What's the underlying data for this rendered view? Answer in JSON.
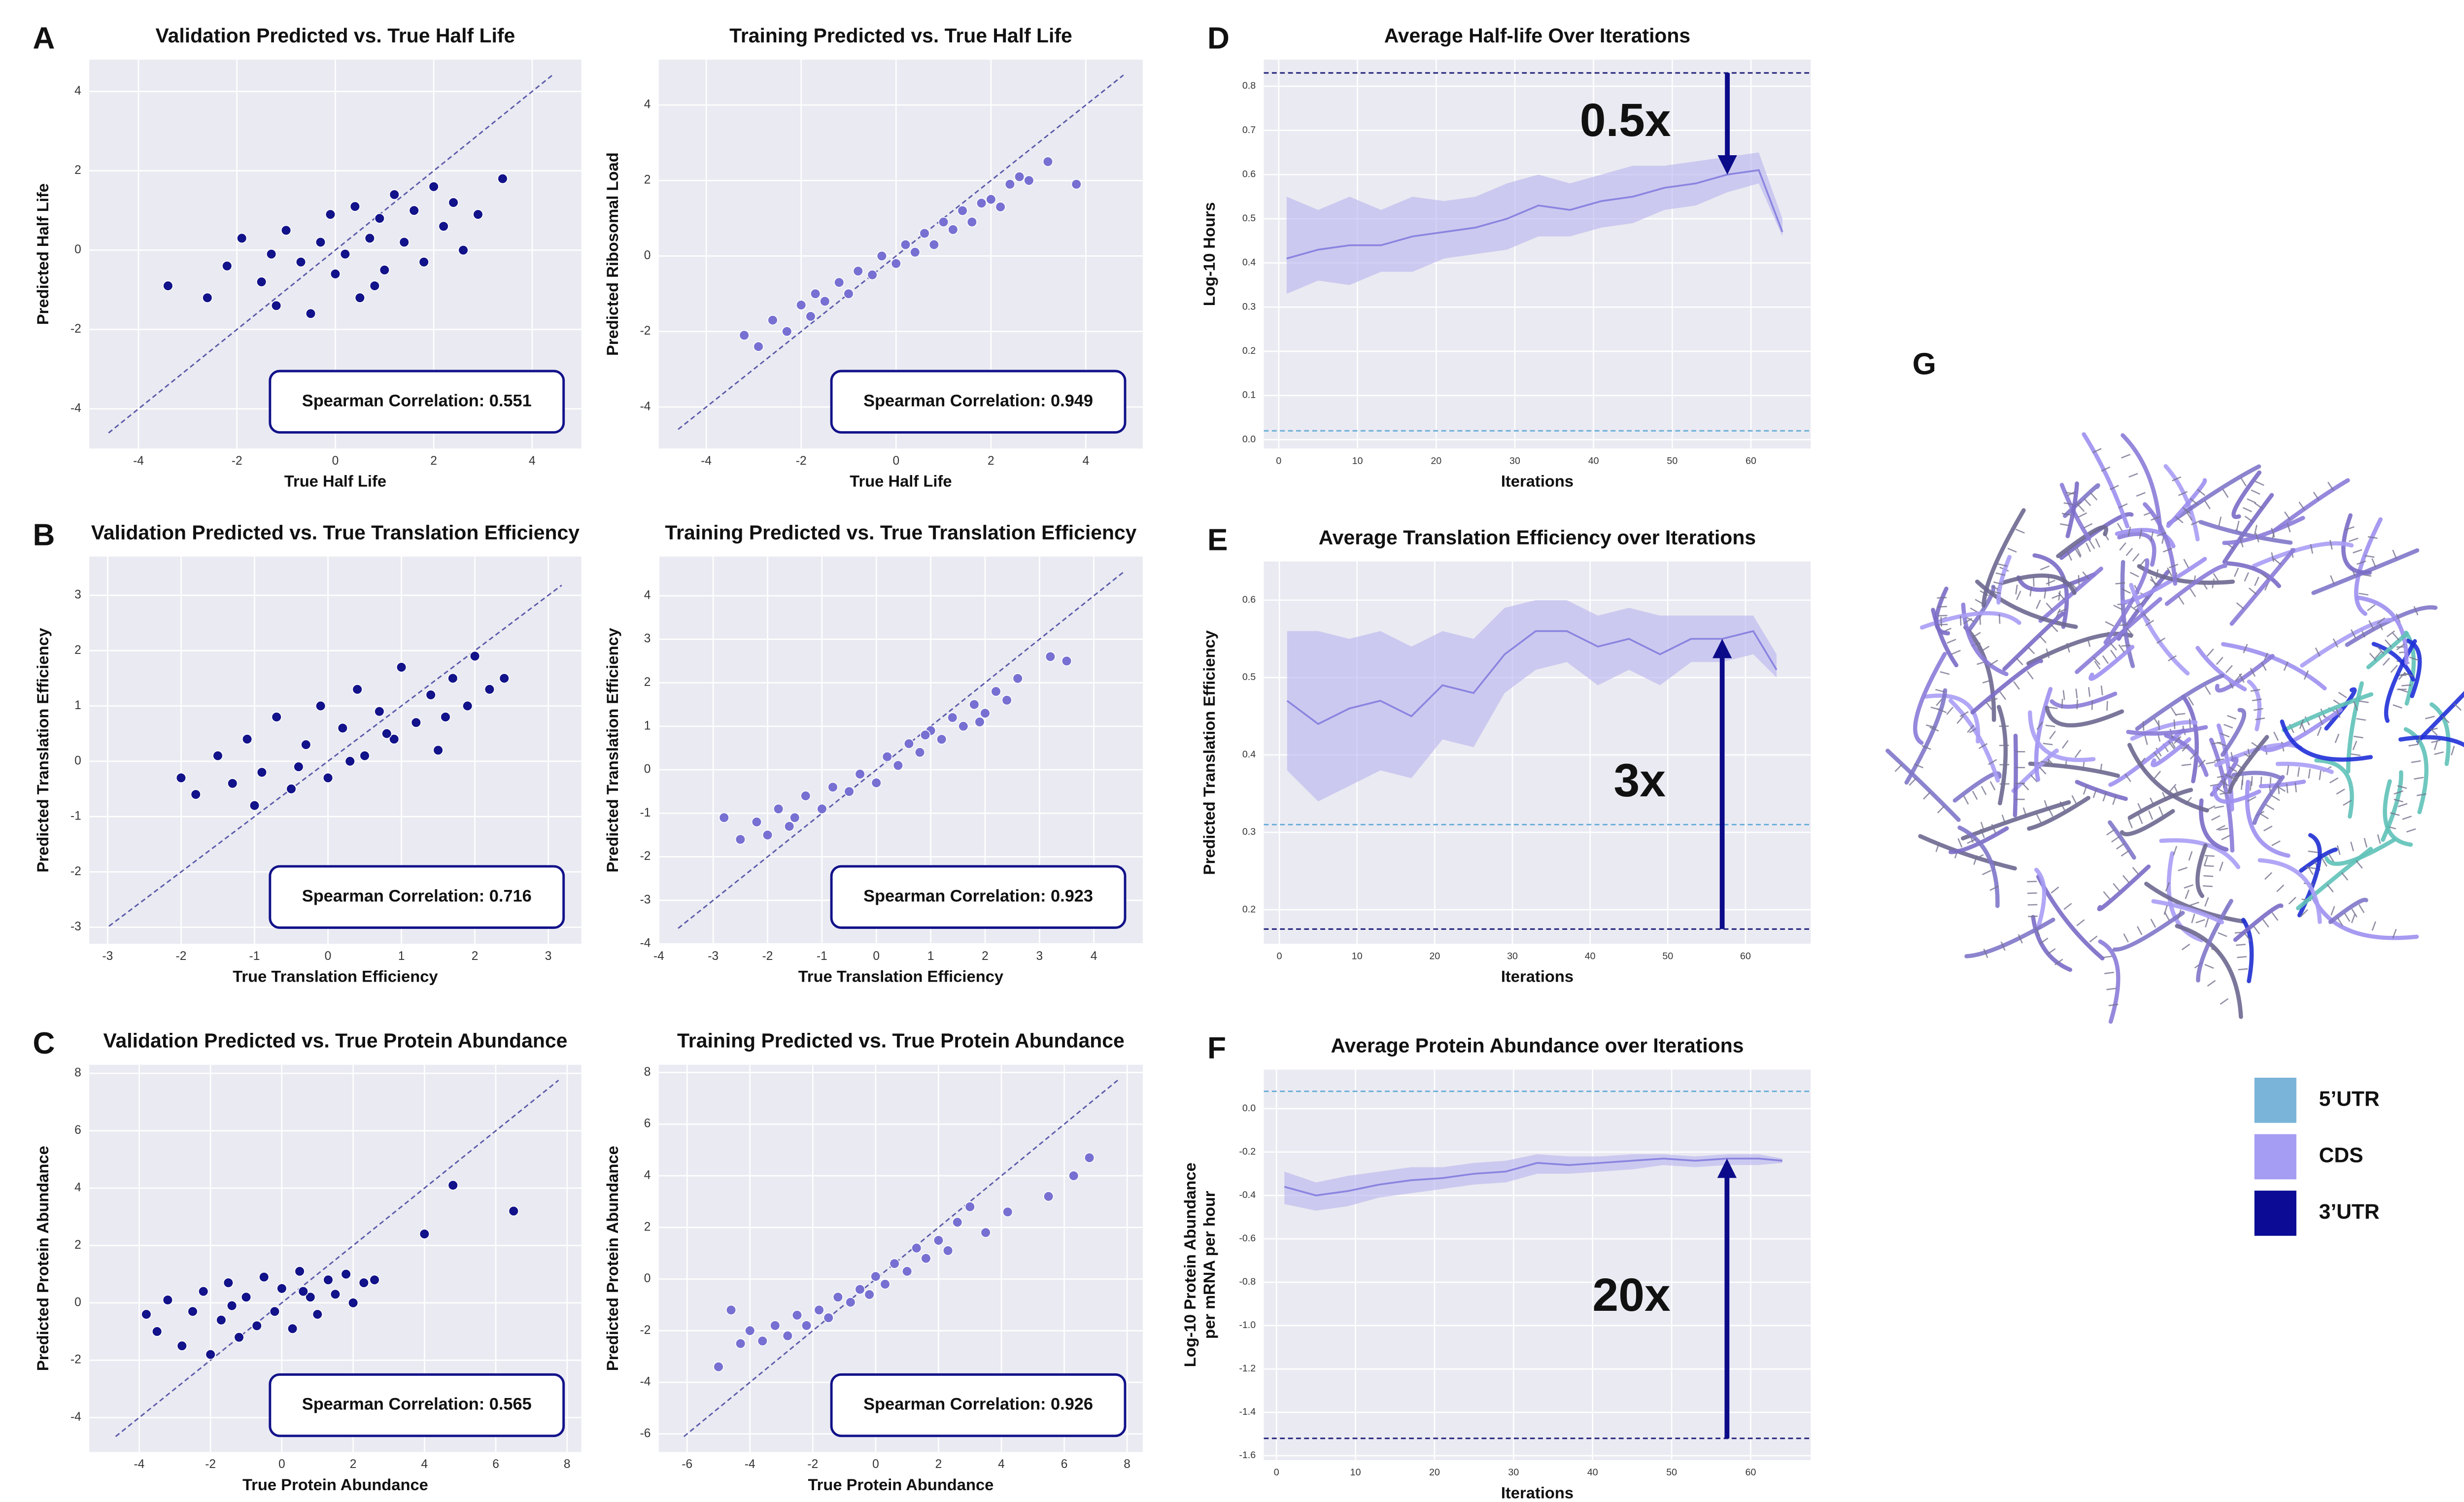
{
  "chart_data": [
    {
      "type": "scatter",
      "panel": "A",
      "title": "Validation Predicted vs. True Half Life",
      "xlabel": "True Half Life",
      "ylabel": "Predicted Half Life",
      "xlim": [
        -5,
        5
      ],
      "ylim": [
        -5,
        4.8
      ],
      "xticks": [
        -4,
        -2,
        0,
        2,
        4
      ],
      "yticks": [
        -4,
        -2,
        0,
        2,
        4
      ],
      "grid": true,
      "diagonal": true,
      "annotation": "Spearman Correlation: 0.551",
      "series": [
        {
          "color": "#12128a",
          "x": [
            -3.4,
            -2.6,
            -2.2,
            -1.9,
            -1.5,
            -1.2,
            -1.0,
            -0.7,
            -0.5,
            -0.3,
            -0.1,
            0.0,
            0.2,
            0.4,
            0.5,
            0.7,
            0.9,
            1.0,
            1.2,
            1.4,
            1.6,
            1.8,
            2.0,
            2.2,
            2.4,
            2.6,
            2.9,
            3.4,
            -1.3,
            0.8
          ],
          "values": [
            -0.9,
            -1.2,
            -0.4,
            0.3,
            -0.8,
            -1.4,
            0.5,
            -0.3,
            -1.6,
            0.2,
            0.9,
            -0.6,
            -0.1,
            1.1,
            -1.2,
            0.3,
            0.8,
            -0.5,
            1.4,
            0.2,
            1.0,
            -0.3,
            1.6,
            0.6,
            1.2,
            0.0,
            0.9,
            1.8,
            -0.1,
            -0.9
          ]
        }
      ]
    },
    {
      "type": "scatter",
      "title": "Training Predicted vs. True Half Life",
      "xlabel": "True Half Life",
      "ylabel": "Predicted Ribosomal Load",
      "xlim": [
        -5,
        5.2
      ],
      "ylim": [
        -5.1,
        5.2
      ],
      "xticks": [
        -4,
        -2,
        0,
        2,
        4
      ],
      "yticks": [
        -4,
        -2,
        0,
        2,
        4
      ],
      "grid": true,
      "diagonal": true,
      "annotation": "Spearman Correlation: 0.949",
      "series": [
        {
          "color": "#7770d2",
          "x": [
            -3.2,
            -2.9,
            -2.6,
            -2.3,
            -2.0,
            -1.8,
            -1.5,
            -1.2,
            -1.0,
            -0.8,
            -0.5,
            -0.3,
            0.0,
            0.2,
            0.4,
            0.6,
            0.8,
            1.0,
            1.2,
            1.4,
            1.6,
            1.8,
            2.0,
            2.2,
            2.4,
            2.6,
            2.8,
            3.2,
            3.8,
            -1.7
          ],
          "values": [
            -2.1,
            -2.4,
            -1.7,
            -2.0,
            -1.3,
            -1.6,
            -1.2,
            -0.7,
            -1.0,
            -0.4,
            -0.5,
            0.0,
            -0.2,
            0.3,
            0.1,
            0.6,
            0.3,
            0.9,
            0.7,
            1.2,
            0.9,
            1.4,
            1.5,
            1.3,
            1.9,
            2.1,
            2.0,
            2.5,
            1.9,
            -1.0
          ]
        }
      ]
    },
    {
      "type": "scatter",
      "panel": "B",
      "title": "Validation Predicted vs. True Translation Efficiency",
      "xlabel": "True Translation Efficiency",
      "ylabel": "Predicted Translation Efficiency",
      "xlim": [
        -3.25,
        3.45
      ],
      "ylim": [
        -3.3,
        3.7
      ],
      "xticks": [
        -3,
        -2,
        -1,
        0,
        1,
        2,
        3
      ],
      "yticks": [
        -3,
        -2,
        -1,
        0,
        1,
        2,
        3
      ],
      "grid": true,
      "diagonal": true,
      "annotation": "Spearman Correlation: 0.716",
      "series": [
        {
          "color": "#12128a",
          "x": [
            -2.0,
            -1.8,
            -1.5,
            -1.3,
            -1.1,
            -0.9,
            -0.7,
            -0.5,
            -0.3,
            -0.1,
            0.0,
            0.2,
            0.4,
            0.5,
            0.7,
            0.9,
            1.0,
            1.2,
            1.4,
            1.5,
            1.7,
            1.9,
            2.0,
            2.2,
            2.4,
            -1.0,
            -0.4,
            0.3,
            0.8,
            1.6
          ],
          "values": [
            -0.3,
            -0.6,
            0.1,
            -0.4,
            0.4,
            -0.2,
            0.8,
            -0.5,
            0.3,
            1.0,
            -0.3,
            0.6,
            1.3,
            0.1,
            0.9,
            0.4,
            1.7,
            0.7,
            1.2,
            0.2,
            1.5,
            1.0,
            1.9,
            1.3,
            1.5,
            -0.8,
            -0.1,
            0.0,
            0.5,
            0.8
          ]
        }
      ]
    },
    {
      "type": "scatter",
      "title": "Training Predicted vs. True Translation Efficiency",
      "xlabel": "True Translation Efficiency",
      "ylabel": "Predicted Translation Efficiency",
      "xlim": [
        -4,
        4.9
      ],
      "ylim": [
        -4,
        4.9
      ],
      "xticks": [
        -4,
        -3,
        -2,
        -1,
        0,
        1,
        2,
        3,
        4
      ],
      "yticks": [
        -4,
        -3,
        -2,
        -1,
        0,
        1,
        2,
        3,
        4
      ],
      "grid": true,
      "diagonal": true,
      "annotation": "Spearman Correlation: 0.923",
      "series": [
        {
          "color": "#7770d2",
          "x": [
            -2.8,
            -2.5,
            -2.2,
            -2.0,
            -1.8,
            -1.5,
            -1.3,
            -1.0,
            -0.8,
            -0.5,
            -0.3,
            0.0,
            0.2,
            0.4,
            0.6,
            0.8,
            1.0,
            1.2,
            1.4,
            1.6,
            1.8,
            2.0,
            2.2,
            2.4,
            2.6,
            3.2,
            3.5,
            -1.6,
            0.9,
            1.9
          ],
          "values": [
            -1.1,
            -1.6,
            -1.2,
            -1.5,
            -0.9,
            -1.1,
            -0.6,
            -0.9,
            -0.4,
            -0.5,
            -0.1,
            -0.3,
            0.3,
            0.1,
            0.6,
            0.4,
            0.9,
            0.7,
            1.2,
            1.0,
            1.5,
            1.3,
            1.8,
            1.6,
            2.1,
            2.6,
            2.5,
            -1.3,
            0.8,
            1.1
          ]
        }
      ]
    },
    {
      "type": "scatter",
      "panel": "C",
      "title": "Validation Predicted vs. True Protein Abundance",
      "xlabel": "True Protein Abundance",
      "ylabel": "Predicted Protein Abundance",
      "xlim": [
        -5.4,
        8.4
      ],
      "ylim": [
        -5.2,
        8.3
      ],
      "xticks": [
        -4,
        -2,
        0,
        2,
        4,
        6,
        8
      ],
      "yticks": [
        -4,
        -2,
        0,
        2,
        4,
        6,
        8
      ],
      "grid": true,
      "diagonal": true,
      "annotation": "Spearman Correlation: 0.565",
      "series": [
        {
          "color": "#12128a",
          "x": [
            -3.8,
            -3.5,
            -3.2,
            -2.8,
            -2.5,
            -2.2,
            -2.0,
            -1.7,
            -1.5,
            -1.2,
            -1.0,
            -0.7,
            -0.5,
            -0.2,
            0.0,
            0.3,
            0.5,
            0.8,
            1.0,
            1.3,
            1.5,
            1.8,
            2.0,
            2.3,
            2.6,
            -1.4,
            0.6,
            4.0,
            4.8,
            6.5
          ],
          "values": [
            -0.4,
            -1.0,
            0.1,
            -1.5,
            -0.3,
            0.4,
            -1.8,
            -0.6,
            0.7,
            -1.2,
            0.2,
            -0.8,
            0.9,
            -0.3,
            0.5,
            -0.9,
            1.1,
            0.2,
            -0.4,
            0.8,
            0.3,
            1.0,
            0.0,
            0.7,
            0.8,
            -0.1,
            0.4,
            2.4,
            4.1,
            3.2
          ]
        }
      ]
    },
    {
      "type": "scatter",
      "title": "Training Predicted vs. True Protein Abundance",
      "xlabel": "True Protein Abundance",
      "ylabel": "Predicted Protein Abundance",
      "xlim": [
        -6.9,
        8.5
      ],
      "ylim": [
        -6.7,
        8.3
      ],
      "xticks": [
        -6,
        -4,
        -2,
        0,
        2,
        4,
        6,
        8
      ],
      "yticks": [
        -6,
        -4,
        -2,
        0,
        2,
        4,
        6,
        8
      ],
      "grid": true,
      "diagonal": true,
      "annotation": "Spearman Correlation: 0.926",
      "series": [
        {
          "color": "#7770d2",
          "x": [
            -4.6,
            -4.3,
            -4.0,
            -3.6,
            -3.2,
            -2.8,
            -2.5,
            -2.2,
            -1.8,
            -1.5,
            -1.2,
            -0.8,
            -0.5,
            -0.2,
            0.0,
            0.3,
            0.6,
            1.0,
            1.3,
            1.6,
            2.0,
            2.3,
            2.6,
            3.0,
            3.5,
            4.2,
            5.5,
            6.3,
            6.8,
            -5.0
          ],
          "values": [
            -1.2,
            -2.5,
            -2.0,
            -2.4,
            -1.8,
            -2.2,
            -1.4,
            -1.8,
            -1.2,
            -1.5,
            -0.7,
            -0.9,
            -0.4,
            -0.6,
            0.1,
            -0.2,
            0.6,
            0.3,
            1.2,
            0.8,
            1.5,
            1.1,
            2.2,
            2.8,
            1.8,
            2.6,
            3.2,
            4.0,
            4.7,
            -3.4
          ]
        }
      ]
    },
    {
      "type": "line",
      "panel": "D",
      "title": "Average Half-life Over Iterations",
      "xlabel": "Iterations",
      "ylabel": [
        "Log-10 Hours"
      ],
      "xlim": [
        -1.9,
        67.6
      ],
      "ylim": [
        -0.02,
        0.86
      ],
      "xticks": [
        0,
        10,
        20,
        30,
        40,
        50,
        60
      ],
      "yticks": [
        {
          "value": 0,
          "label": "0.0"
        },
        0.1,
        0.2,
        0.3,
        0.4,
        0.5,
        0.6,
        0.7,
        0.8
      ],
      "grid": true,
      "annotation": "0.5x",
      "hlines": [
        {
          "value": 0.83,
          "color": "#1f1f7a"
        },
        {
          "value": 0.02,
          "color": "#6aaed8"
        }
      ],
      "x": [
        1,
        5,
        9,
        13,
        17,
        21,
        25,
        29,
        33,
        37,
        41,
        45,
        49,
        53,
        57,
        61,
        64
      ],
      "series": [
        {
          "color": "#8a84e0",
          "values": [
            0.41,
            0.43,
            0.44,
            0.44,
            0.46,
            0.47,
            0.48,
            0.5,
            0.53,
            0.52,
            0.54,
            0.55,
            0.57,
            0.58,
            0.6,
            0.61,
            0.47
          ],
          "upper": [
            0.55,
            0.52,
            0.55,
            0.52,
            0.55,
            0.54,
            0.55,
            0.58,
            0.6,
            0.58,
            0.6,
            0.62,
            0.62,
            0.63,
            0.64,
            0.65,
            0.5
          ],
          "lower": [
            0.33,
            0.36,
            0.35,
            0.38,
            0.38,
            0.41,
            0.42,
            0.43,
            0.46,
            0.46,
            0.48,
            0.49,
            0.52,
            0.53,
            0.56,
            0.58,
            0.46
          ]
        }
      ]
    },
    {
      "type": "line",
      "panel": "E",
      "title": "Average Translation Efficiency over Iterations",
      "xlabel": "Iterations",
      "ylabel": [
        "Predicted Translation Efficiency"
      ],
      "xlim": [
        -2,
        68.4
      ],
      "ylim": [
        0.156,
        0.65
      ],
      "xticks": [
        0,
        10,
        20,
        30,
        40,
        50,
        60
      ],
      "yticks": [
        0.2,
        0.3,
        0.4,
        0.5,
        0.6
      ],
      "grid": true,
      "annotation": "3x",
      "hlines": [
        {
          "value": 0.175,
          "color": "#1f1f7a"
        },
        {
          "value": 0.31,
          "color": "#6aaed8"
        }
      ],
      "x": [
        1,
        5,
        9,
        13,
        17,
        21,
        25,
        29,
        33,
        37,
        41,
        45,
        49,
        53,
        57,
        61,
        64
      ],
      "series": [
        {
          "color": "#8a84e0",
          "values": [
            0.47,
            0.44,
            0.46,
            0.47,
            0.45,
            0.49,
            0.48,
            0.53,
            0.56,
            0.56,
            0.54,
            0.55,
            0.53,
            0.55,
            0.55,
            0.56,
            0.51
          ],
          "upper": [
            0.56,
            0.56,
            0.55,
            0.56,
            0.54,
            0.56,
            0.55,
            0.59,
            0.6,
            0.6,
            0.58,
            0.59,
            0.58,
            0.58,
            0.58,
            0.58,
            0.53
          ],
          "lower": [
            0.38,
            0.34,
            0.36,
            0.38,
            0.37,
            0.42,
            0.41,
            0.48,
            0.51,
            0.52,
            0.49,
            0.51,
            0.49,
            0.52,
            0.52,
            0.53,
            0.5
          ]
        }
      ]
    },
    {
      "type": "line",
      "panel": "F",
      "title": "Average Protein Abundance over Iterations",
      "xlabel": "Iterations",
      "ylabel": [
        "Log-10 Protein Abundance",
        "per mRNA per hour"
      ],
      "xlim": [
        -1.6,
        67.6
      ],
      "ylim": [
        -1.62,
        0.18
      ],
      "xticks": [
        0,
        10,
        20,
        30,
        40,
        50,
        60
      ],
      "yticks": [
        {
          "value": 0,
          "label": "0.0"
        },
        -0.2,
        -0.4,
        -0.6,
        -0.8,
        {
          "value": -1,
          "label": "-1.0"
        },
        -1.2,
        -1.4,
        -1.6
      ],
      "grid": true,
      "annotation": "20x",
      "hlines": [
        {
          "value": -1.52,
          "color": "#1f1f7a"
        },
        {
          "value": 0.08,
          "color": "#6aaed8"
        }
      ],
      "x": [
        1,
        5,
        9,
        13,
        17,
        21,
        25,
        29,
        33,
        37,
        41,
        45,
        49,
        53,
        57,
        61,
        64
      ],
      "series": [
        {
          "color": "#8a84e0",
          "values": [
            -0.36,
            -0.4,
            -0.38,
            -0.35,
            -0.33,
            -0.32,
            -0.3,
            -0.29,
            -0.25,
            -0.26,
            -0.25,
            -0.24,
            -0.23,
            -0.24,
            -0.23,
            -0.23,
            -0.24
          ],
          "upper": [
            -0.29,
            -0.34,
            -0.31,
            -0.29,
            -0.27,
            -0.27,
            -0.25,
            -0.24,
            -0.21,
            -0.22,
            -0.22,
            -0.21,
            -0.21,
            -0.22,
            -0.21,
            -0.21,
            -0.23
          ],
          "lower": [
            -0.44,
            -0.47,
            -0.45,
            -0.41,
            -0.39,
            -0.37,
            -0.35,
            -0.34,
            -0.3,
            -0.3,
            -0.29,
            -0.28,
            -0.26,
            -0.27,
            -0.26,
            -0.26,
            -0.25
          ]
        }
      ]
    }
  ],
  "structure": {
    "panel": "G",
    "legend": [
      {
        "name": "5’UTR",
        "color": "#7ab4d8"
      },
      {
        "name": "CDS",
        "color": "#a59cf3"
      },
      {
        "name": "3’UTR",
        "color": "#0b0b96"
      }
    ]
  }
}
